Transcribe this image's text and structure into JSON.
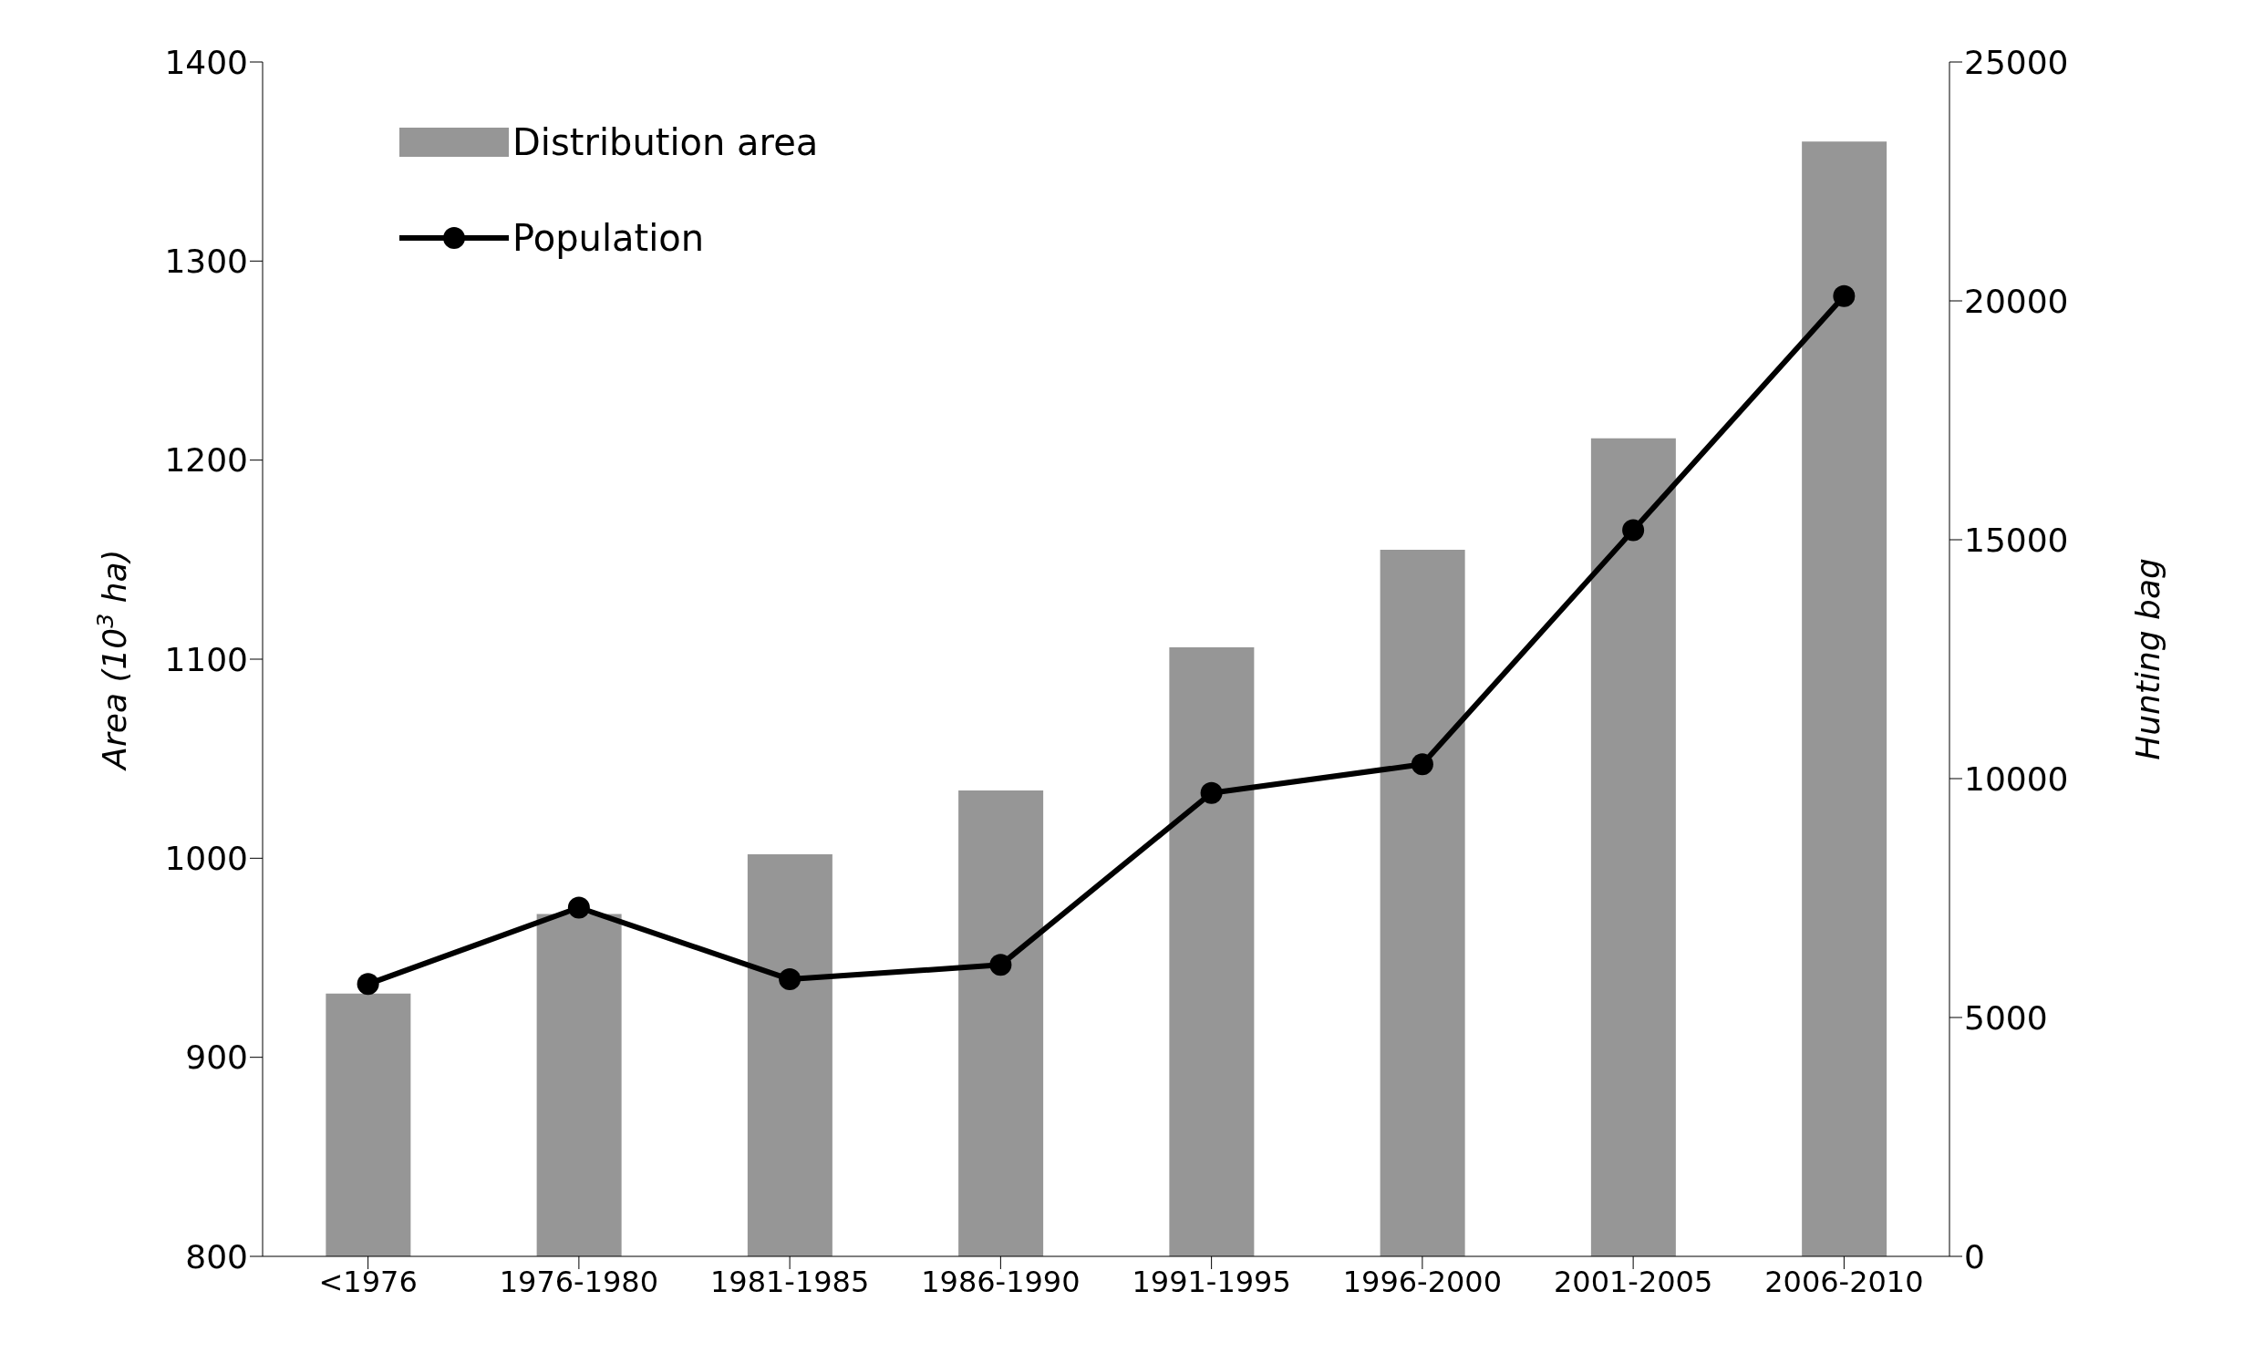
{
  "chart_data": {
    "type": "bar",
    "categories": [
      "<1976",
      "1976-1980",
      "1981-1985",
      "1986-1990",
      "1991-1995",
      "1996-2000",
      "2001-2005",
      "2006-2010"
    ],
    "series": [
      {
        "name": "Distribution area",
        "color": "#969696",
        "values": [
          932,
          972,
          1002,
          1034,
          1106,
          1155,
          1211,
          1360
        ]
      },
      {
        "name": "Population",
        "type": "line",
        "axis": "y2",
        "color": "#000000",
        "values": [
          5700,
          7300,
          5800,
          6100,
          9700,
          10300,
          15200,
          20100
        ]
      }
    ],
    "ylabel": "Area (10$^{3}$ ha)",
    "y2label": "Hunting bag",
    "ylim": [
      800,
      1400
    ],
    "yticks": [
      800,
      900,
      1000,
      1100,
      1200,
      1300,
      1400
    ],
    "y2lim": [
      0,
      25000
    ],
    "y2ticks": [
      0,
      5000,
      10000,
      15000,
      20000,
      25000
    ],
    "legend": "top left",
    "grid": false,
    "marker": "circle",
    "line_style": "solid"
  }
}
